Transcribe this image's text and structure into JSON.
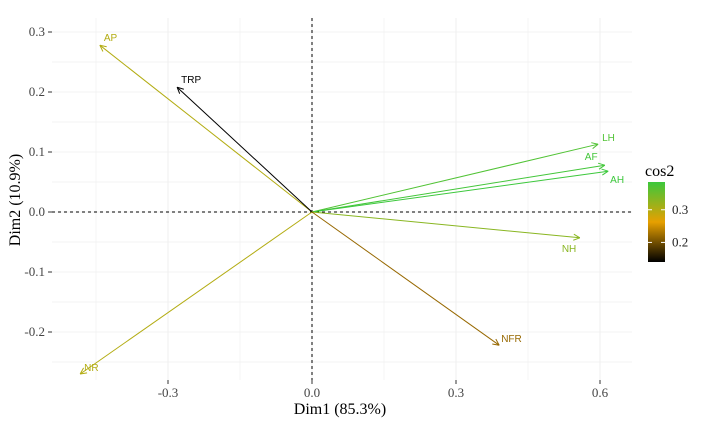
{
  "chart_data": {
    "type": "pca-variable-plot",
    "xlabel": "Dim1 (85.3%)",
    "ylabel": "Dim2 (10.9%)",
    "xlim": [
      -0.55,
      0.67
    ],
    "ylim": [
      -0.28,
      0.32
    ],
    "xticks": [
      -0.3,
      0.0,
      0.3,
      0.6
    ],
    "xtick_labels": [
      "-0.3",
      "0.0",
      "0.3",
      "0.6"
    ],
    "yticks": [
      -0.2,
      -0.1,
      0.0,
      0.1,
      0.2,
      0.3
    ],
    "ytick_labels": [
      "-0.2",
      "-0.1",
      "0.0",
      "0.1",
      "0.2",
      "0.3"
    ],
    "grid": true,
    "legend": {
      "title": "cos2",
      "position": "right",
      "range": [
        0.14,
        0.385
      ],
      "ticks": [
        0.2,
        0.3
      ],
      "tick_labels": [
        "0.2",
        "0.3"
      ],
      "colors": [
        "#000000",
        "#E7A000",
        "#3CC83C"
      ]
    },
    "variables": [
      {
        "name": "AP",
        "x": -0.442,
        "y": 0.278,
        "cos2": 0.3
      },
      {
        "name": "TRP",
        "x": -0.281,
        "y": 0.208,
        "cos2": 0.14
      },
      {
        "name": "LH",
        "x": 0.596,
        "y": 0.113,
        "cos2": 0.37
      },
      {
        "name": "AF",
        "x": 0.61,
        "y": 0.078,
        "cos2": 0.38
      },
      {
        "name": "AH",
        "x": 0.617,
        "y": 0.068,
        "cos2": 0.385
      },
      {
        "name": "NH",
        "x": 0.558,
        "y": -0.043,
        "cos2": 0.33
      },
      {
        "name": "NFR",
        "x": 0.39,
        "y": -0.222,
        "cos2": 0.22
      },
      {
        "name": "NR",
        "x": -0.483,
        "y": -0.27,
        "cos2": 0.3
      }
    ]
  }
}
